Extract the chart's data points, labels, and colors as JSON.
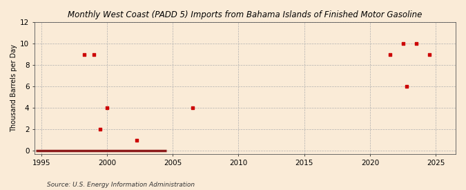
{
  "title": "Monthly West Coast (PADD 5) Imports from Bahama Islands of Finished Motor Gasoline",
  "ylabel": "Thousand Barrels per Day",
  "source": "Source: U.S. Energy Information Administration",
  "background_color": "#faebd7",
  "scatter_color": "#cc0000",
  "line_color": "#8b1a1a",
  "xlim": [
    1994.5,
    2026.5
  ],
  "ylim": [
    -0.3,
    12
  ],
  "xticks": [
    1995,
    2000,
    2005,
    2010,
    2015,
    2020,
    2025
  ],
  "yticks": [
    0,
    2,
    4,
    6,
    8,
    10,
    12
  ],
  "scatter_x": [
    1998.25,
    1999.0,
    1999.5,
    2000.0,
    2002.25,
    2006.5,
    2021.5,
    2022.5,
    2022.75,
    2023.5,
    2024.5
  ],
  "scatter_y": [
    9,
    9,
    2,
    4,
    1,
    4,
    9,
    10,
    6,
    10,
    9
  ],
  "zero_line_x_start": 1994.6,
  "zero_line_x_end": 2004.5
}
